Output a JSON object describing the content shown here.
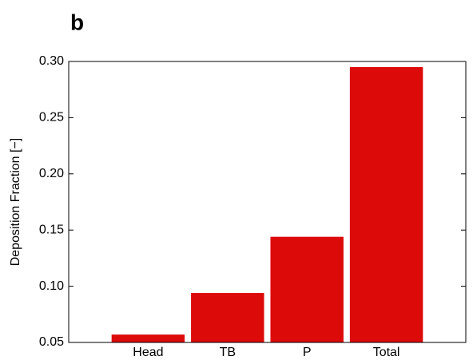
{
  "chart_data": {
    "type": "bar",
    "panel_label": "b",
    "y_label": "Deposition Fraction [−]",
    "categories": [
      "Head",
      "TB",
      "P",
      "Total"
    ],
    "values": [
      0.057,
      0.094,
      0.144,
      0.295
    ],
    "color": "#dd0a0a",
    "ylim": [
      0.05,
      0.3
    ],
    "yticks": [
      0.05,
      {
        "value": 0.1,
        "label": "0.10"
      },
      0.15,
      {
        "value": 0.2,
        "label": "0.20"
      },
      0.25,
      {
        "value": 0.3,
        "label": "0.30"
      }
    ],
    "grid": false
  }
}
